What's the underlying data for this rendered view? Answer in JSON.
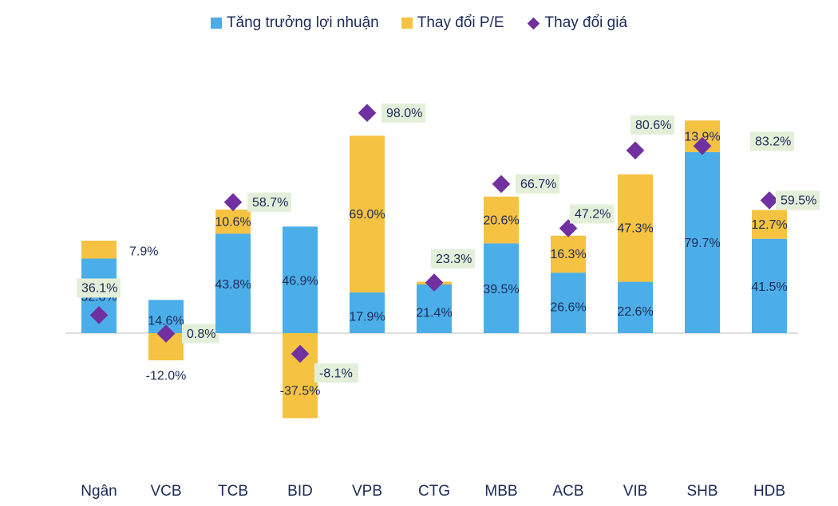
{
  "colors": {
    "profit": "#4BAEE8",
    "pe": "#F5C242",
    "price": "#7030A0",
    "label_bg": "#E3EFD9",
    "text": "#1b2a57",
    "axis": "#bfbfbf"
  },
  "legend": {
    "profit": "Tăng trưởng lợi nhuận",
    "pe": "Thay đổi P/E",
    "price": "Thay đổi giá"
  },
  "chart_data": {
    "type": "bar",
    "stacked": true,
    "categories": [
      "Ngân",
      "VCB",
      "TCB",
      "BID",
      "VPB",
      "CTG",
      "MBB",
      "ACB",
      "VIB",
      "SHB",
      "HDB"
    ],
    "series": [
      {
        "name": "Tăng trưởng lợi nhuận",
        "values": [
          32.8,
          14.6,
          43.8,
          46.9,
          17.9,
          21.4,
          39.5,
          26.6,
          22.6,
          79.7,
          41.5
        ]
      },
      {
        "name": "Thay đổi P/E",
        "values": [
          7.9,
          -12.0,
          10.6,
          -37.5,
          69.0,
          1.2,
          20.6,
          16.3,
          47.3,
          13.9,
          12.7
        ]
      },
      {
        "name": "Thay đổi giá",
        "type": "scatter",
        "marker": "diamond",
        "values": [
          36.1,
          0.8,
          58.7,
          -8.1,
          98.0,
          23.3,
          66.7,
          47.2,
          80.6,
          83.2,
          59.5
        ]
      }
    ],
    "bar_labels": {
      "profit": [
        "32.8%",
        "14.6%",
        "43.8%",
        "46.9%",
        "17.9%",
        "21.4%",
        "39.5%",
        "26.6%",
        "22.6%",
        "79.7%",
        "41.5%"
      ],
      "pe": [
        "7.9%",
        "-12.0%",
        "10.6%",
        "-37.5%",
        "69.0%",
        "",
        "20.6%",
        "16.3%",
        "47.3%",
        "13.9%",
        "12.7%"
      ],
      "price": [
        "36.1%",
        "0.8%",
        "58.7%",
        "-8.1%",
        "98.0%",
        "23.3%",
        "66.7%",
        "47.2%",
        "80.6%",
        "83.2%",
        "59.5%"
      ]
    },
    "ylim": [
      -60,
      115
    ],
    "legend_position": "top-center",
    "grid": false
  }
}
